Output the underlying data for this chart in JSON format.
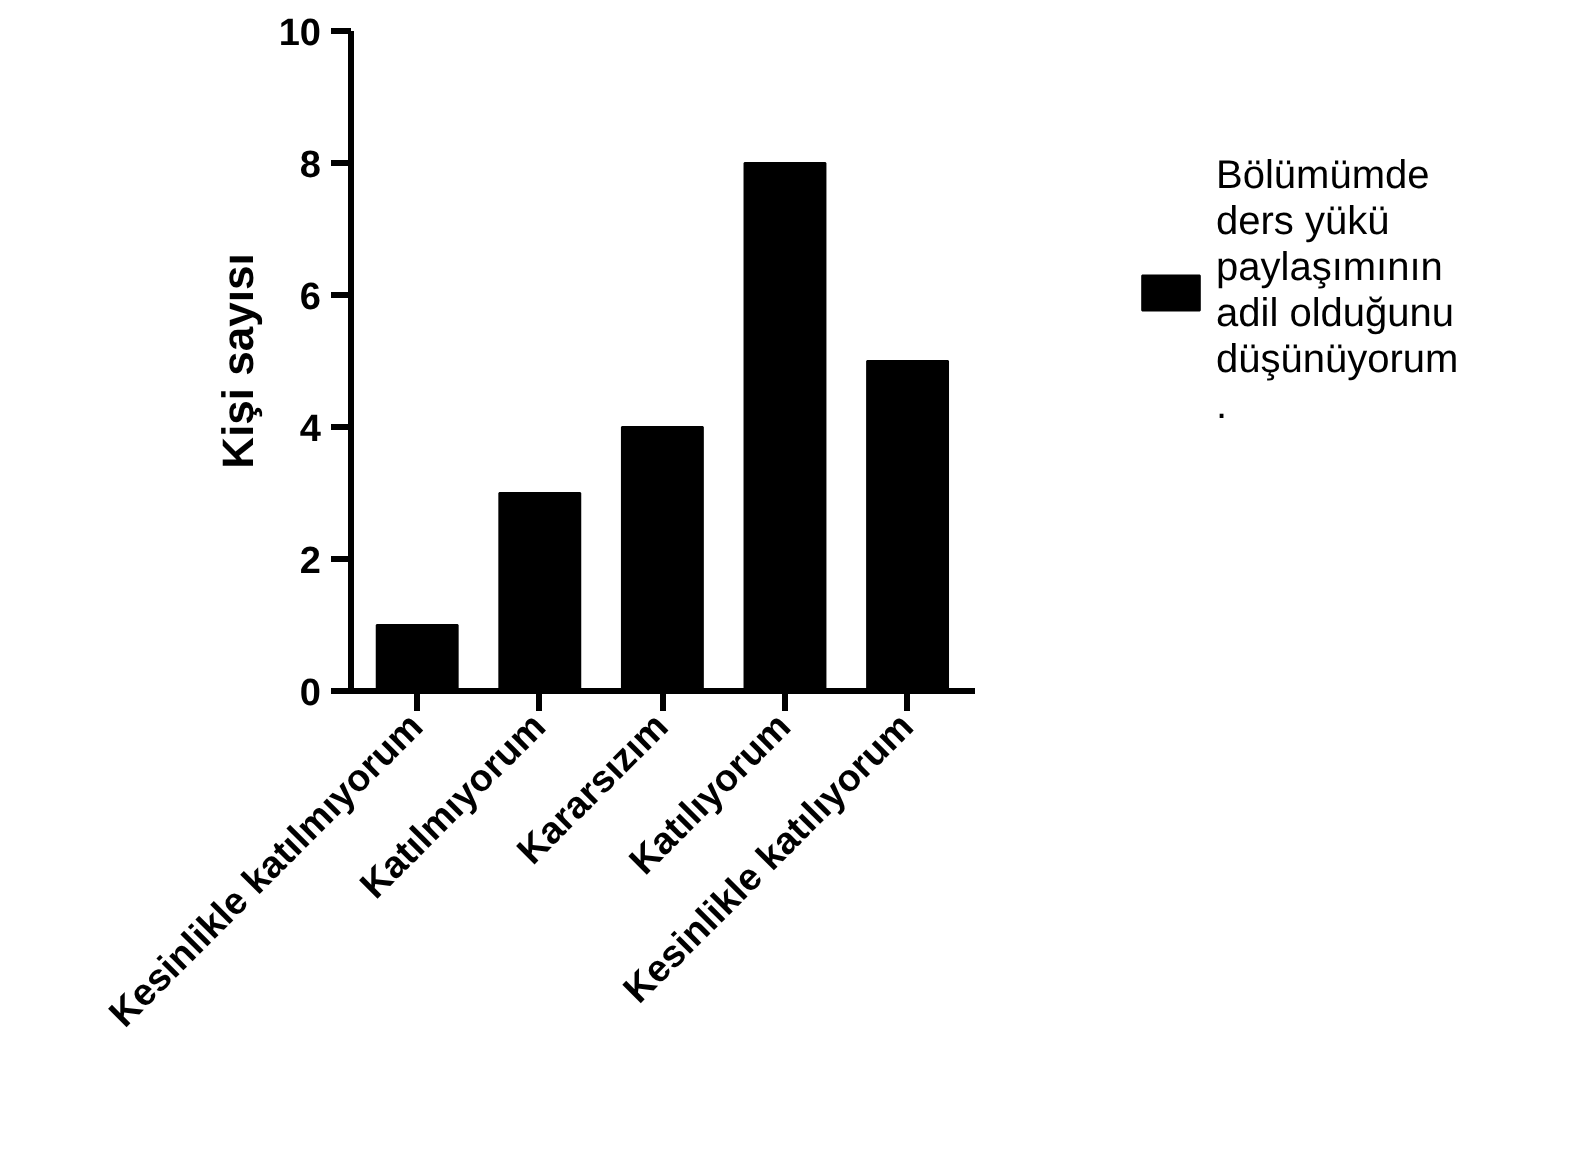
{
  "chart_data": {
    "type": "bar",
    "ylabel": "Kişi sayısı",
    "categories": [
      "Kesinlikle katılmıyorum",
      "Katılmıyorum",
      "Kararsızım",
      "Katılıyorum",
      "Kesinlikle katılıyorum"
    ],
    "series": [
      {
        "name": "Bölümümde\nders yükü\npaylaşımının\nadil olduğunu\ndüşünüyorum\n.",
        "color": "#000000",
        "values": [
          1,
          3,
          4,
          8,
          5
        ]
      }
    ],
    "ylim": [
      0,
      10
    ],
    "yticks": [
      0,
      2,
      4,
      6,
      8,
      10
    ],
    "grid": false,
    "legend": "right"
  }
}
